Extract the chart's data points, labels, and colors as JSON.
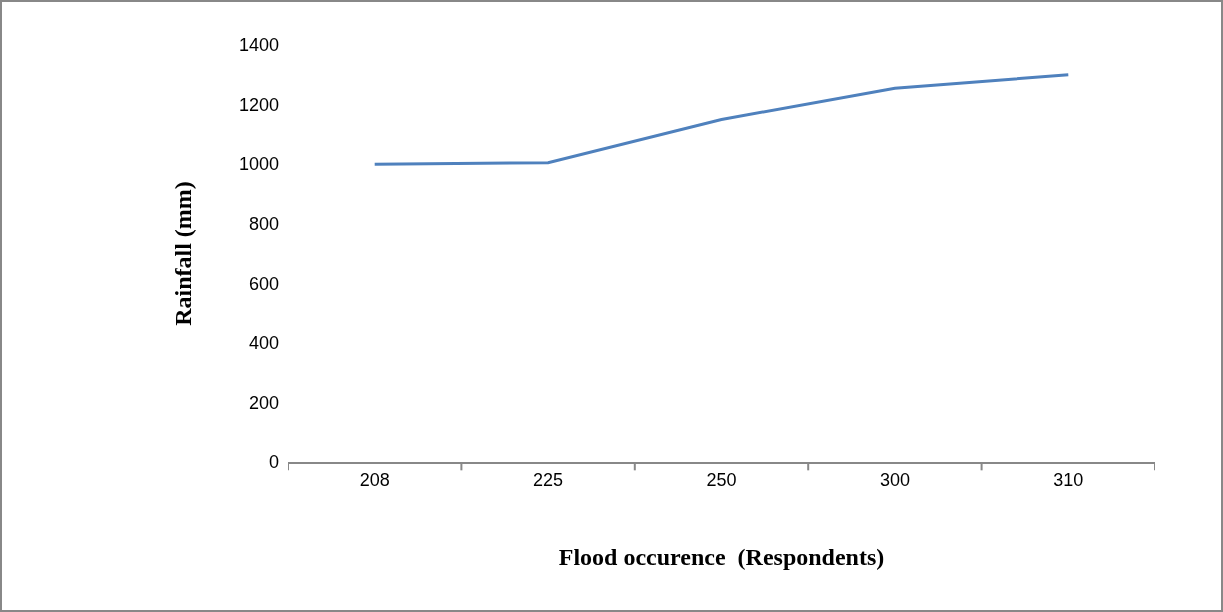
{
  "chart_data": {
    "type": "line",
    "xlabel": "Flood occurence  (Respondents)",
    "ylabel": "Rainfall (mm)",
    "categories": [
      "208",
      "225",
      "250",
      "300",
      "310"
    ],
    "series": [
      {
        "color": "#4f81bd",
        "values": [
          1000,
          1005,
          1150,
          1255,
          1300
        ]
      }
    ],
    "ylim": [
      0,
      1400
    ],
    "yticks": [
      0,
      200,
      400,
      600,
      800,
      1000,
      1200,
      1400
    ],
    "marker": "none",
    "line_style": "solid"
  }
}
